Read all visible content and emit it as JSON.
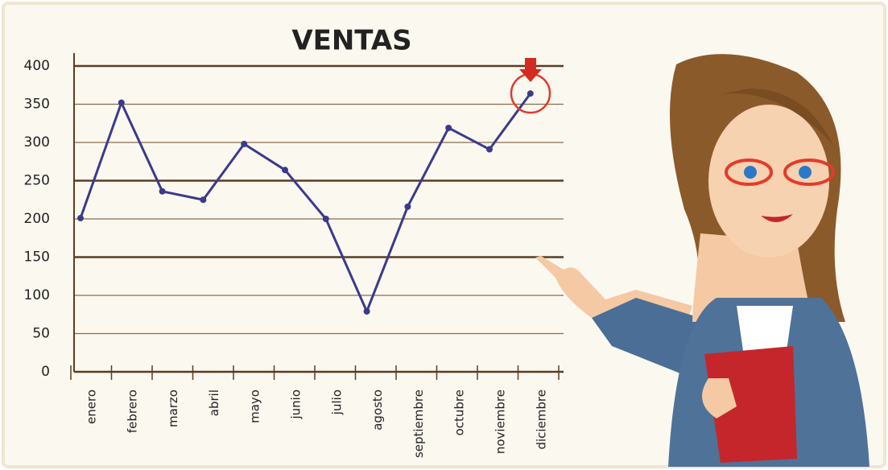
{
  "chart_data": {
    "type": "line",
    "title": "VENTAS",
    "categories": [
      "enero",
      "febrero",
      "marzo",
      "abril",
      "mayo",
      "junio",
      "julio",
      "agosto",
      "septiembre",
      "octubre",
      "noviembre",
      "diciembre"
    ],
    "values": [
      201,
      352,
      236,
      225,
      298,
      264,
      200,
      79,
      216,
      319,
      291,
      364
    ],
    "color": "#3b3a8c",
    "ylim": [
      0,
      400
    ],
    "yticks": [
      0,
      50,
      100,
      150,
      200,
      250,
      300,
      350,
      400
    ],
    "grid": true
  }
}
